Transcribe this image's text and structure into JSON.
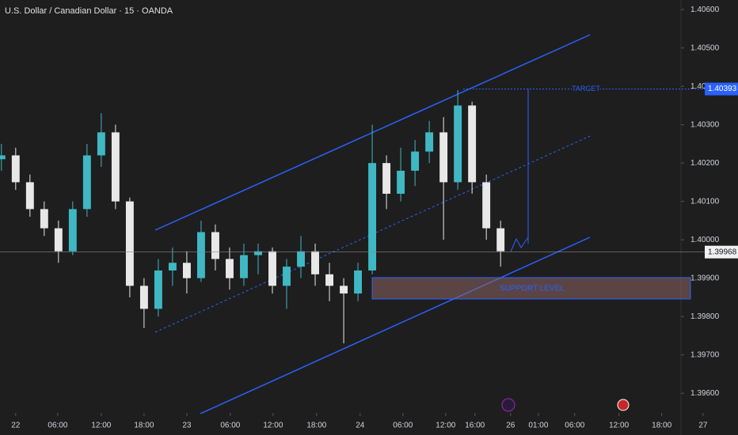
{
  "chart_data": {
    "type": "candlestick",
    "title": "U.S. Dollar / Canadian Dollar · 15 · OANDA",
    "x": [
      -2,
      0,
      2,
      4,
      6,
      8,
      10,
      12,
      14,
      16,
      18,
      20,
      22,
      24,
      26,
      28,
      30,
      32,
      34,
      36,
      38,
      40,
      42,
      44,
      46,
      48,
      50,
      52,
      54,
      56,
      58,
      60,
      62,
      64,
      66,
      68
    ],
    "open": [
      1.4021,
      1.4022,
      1.4015,
      1.4008,
      1.4003,
      1.3997,
      1.4008,
      1.4022,
      1.4028,
      1.401,
      1.3988,
      1.3982,
      1.3992,
      1.3994,
      1.399,
      1.4002,
      1.3995,
      1.399,
      1.3996,
      1.3997,
      1.3988,
      1.3993,
      1.3997,
      1.3991,
      1.3988,
      1.3986,
      1.3992,
      1.402,
      1.4012,
      1.4018,
      1.4023,
      1.4028,
      1.4015,
      1.4035,
      1.4015,
      1.4003
    ],
    "high": [
      1.4025,
      1.4024,
      1.4017,
      1.401,
      1.4005,
      1.401,
      1.4025,
      1.4033,
      1.403,
      1.4011,
      1.399,
      1.3995,
      1.3998,
      1.3997,
      1.4005,
      1.4004,
      1.3998,
      1.3999,
      1.3999,
      1.3998,
      1.3995,
      1.4001,
      1.3999,
      1.3994,
      1.399,
      1.3994,
      1.403,
      1.4022,
      1.4024,
      1.4026,
      1.4031,
      1.4032,
      1.4039,
      1.4036,
      1.4017,
      1.4005
    ],
    "low": [
      1.4018,
      1.4013,
      1.4006,
      1.4001,
      1.3994,
      1.3996,
      1.4006,
      1.4019,
      1.4008,
      1.3985,
      1.3977,
      1.398,
      1.3988,
      1.3986,
      1.3989,
      1.3992,
      1.3987,
      1.3988,
      1.3991,
      1.3986,
      1.3982,
      1.399,
      1.3988,
      1.3984,
      1.3973,
      1.3984,
      1.3991,
      1.4008,
      1.401,
      1.4014,
      1.402,
      1.4,
      1.4013,
      1.4012,
      1.4,
      1.3993
    ],
    "close": [
      1.4022,
      1.4015,
      1.4008,
      1.4003,
      1.3997,
      1.4008,
      1.4022,
      1.4028,
      1.401,
      1.3988,
      1.3982,
      1.3992,
      1.3994,
      1.399,
      1.4002,
      1.3995,
      1.399,
      1.3996,
      1.3997,
      1.3988,
      1.3993,
      1.3997,
      1.3991,
      1.3988,
      1.3986,
      1.3992,
      1.402,
      1.4012,
      1.4018,
      1.4023,
      1.4028,
      1.4015,
      1.4035,
      1.4015,
      1.4003,
      1.3997
    ],
    "up_color": "#3fb8c4",
    "down_color": "#e8e8e8",
    "xlim": [
      -2.2,
      93.3
    ],
    "xticks": [
      {
        "value": 0,
        "label": "22"
      },
      {
        "value": 5.9,
        "label": "06:00"
      },
      {
        "value": 12,
        "label": "12:00"
      },
      {
        "value": 18,
        "label": "18:00"
      },
      {
        "value": 24,
        "label": "23"
      },
      {
        "value": 30.1,
        "label": "06:00"
      },
      {
        "value": 36.1,
        "label": "12:00"
      },
      {
        "value": 42.2,
        "label": "18:00"
      },
      {
        "value": 48.3,
        "label": "24"
      },
      {
        "value": 54.3,
        "label": "06:00"
      },
      {
        "value": 60.3,
        "label": "12:00"
      },
      {
        "value": 64.4,
        "label": "16:00"
      },
      {
        "value": 69.4,
        "label": "26"
      },
      {
        "value": 73.3,
        "label": "01:00"
      },
      {
        "value": 78.4,
        "label": "06:00"
      },
      {
        "value": 84.6,
        "label": "12:00"
      },
      {
        "value": 90.6,
        "label": "18:00"
      },
      {
        "value": 96.4,
        "label": "27"
      }
    ],
    "ylim": [
      1.39553,
      1.40625
    ],
    "yticks": [
      {
        "value": 1.396,
        "label": "1.39600"
      },
      {
        "value": 1.397,
        "label": "1.39700"
      },
      {
        "value": 1.398,
        "label": "1.39800"
      },
      {
        "value": 1.399,
        "label": "1.39900"
      },
      {
        "value": 1.4,
        "label": "1.40000"
      },
      {
        "value": 1.401,
        "label": "1.40100"
      },
      {
        "value": 1.402,
        "label": "1.40200"
      },
      {
        "value": 1.403,
        "label": "1.40300"
      },
      {
        "value": 1.404,
        "label": "1.40400"
      },
      {
        "value": 1.405,
        "label": "1.40500"
      },
      {
        "value": 1.406,
        "label": "1.40600"
      }
    ],
    "target_label": "TARGET",
    "target_price": 1.40393,
    "support_label": "SUPPORT LEVEL",
    "last_price": 1.39968
  }
}
